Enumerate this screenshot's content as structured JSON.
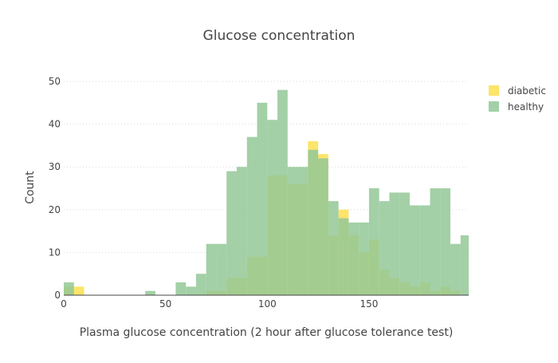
{
  "chart_data": {
    "type": "histogram-overlay",
    "title": "Glucose concentration",
    "xlabel": "Plasma glucose concentration (2 hour after glucose tolerance test)",
    "ylabel": "Count",
    "xlim": [
      0,
      199
    ],
    "ylim": [
      0,
      50
    ],
    "x_ticks": [
      0,
      50,
      100,
      150
    ],
    "y_ticks": [
      0,
      10,
      20,
      30,
      40,
      50
    ],
    "grid": true,
    "legend_position": "top-right",
    "bin_width": 5,
    "bin_starts": [
      0,
      5,
      10,
      15,
      20,
      25,
      30,
      35,
      40,
      45,
      50,
      55,
      60,
      65,
      70,
      75,
      80,
      85,
      90,
      95,
      100,
      105,
      110,
      115,
      120,
      125,
      130,
      135,
      140,
      145,
      150,
      155,
      160,
      165,
      170,
      175,
      180,
      185,
      190,
      195
    ],
    "series": [
      {
        "name": "diabetic",
        "color": "#fddf50",
        "values": [
          2,
          2,
          0,
          0,
          0,
          0,
          0,
          0,
          0,
          0,
          0,
          0,
          0,
          0,
          1,
          1,
          4,
          4,
          9,
          9,
          28,
          28,
          26,
          26,
          36,
          33,
          14,
          20,
          14,
          10,
          13,
          6,
          4,
          3,
          2,
          3,
          1,
          2,
          1,
          0
        ]
      },
      {
        "name": "healthy",
        "color": "#93c897",
        "values": [
          3,
          0,
          0,
          0,
          0,
          0,
          0,
          0,
          1,
          0,
          0,
          3,
          2,
          5,
          12,
          12,
          29,
          30,
          37,
          45,
          41,
          48,
          30,
          30,
          34,
          32,
          22,
          18,
          17,
          17,
          25,
          22,
          24,
          24,
          21,
          21,
          25,
          25,
          12,
          14
        ]
      }
    ]
  }
}
